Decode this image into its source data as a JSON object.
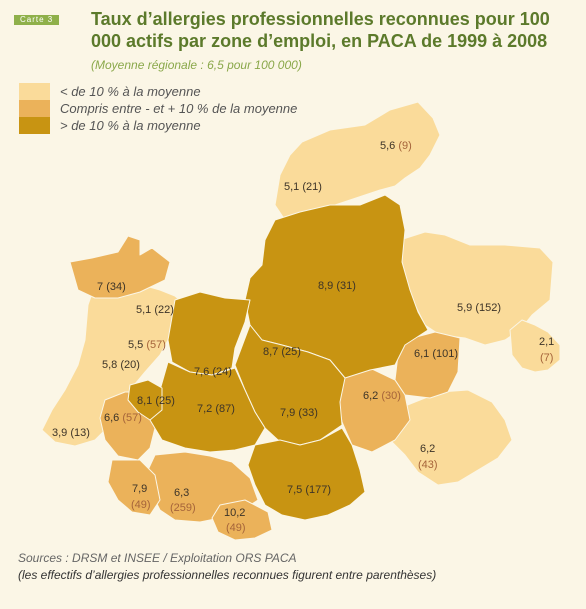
{
  "header": {
    "tag": "Carte 3",
    "title": "Taux d’allergies professionnelles reconnues pour 100 000 actifs par zone d’emploi, en PACA de 1999 à 2008",
    "subtitle": "(Moyenne régionale : 6,5 pour 100 000)"
  },
  "legend": [
    {
      "label": "< de 10 % à la moyenne",
      "color": "#fadb9a"
    },
    {
      "label": "Compris entre - et + 10 % de la moyenne",
      "color": "#ebb25a"
    },
    {
      "label": "> de 10 % à la moyenne",
      "color": "#c89412"
    }
  ],
  "zones": [
    {
      "rate": "5,6",
      "count": "(9)"
    },
    {
      "rate": "5,1",
      "count": "(21)"
    },
    {
      "rate": "8,9",
      "count": "(31)"
    },
    {
      "rate": "7",
      "count": "(34)"
    },
    {
      "rate": "5,1",
      "count": "(22)"
    },
    {
      "rate": "5,5",
      "count": "(57)"
    },
    {
      "rate": "5,8",
      "count": "(20)"
    },
    {
      "rate": "5,9",
      "count": "(152)"
    },
    {
      "rate": "2,1",
      "count": "(7)"
    },
    {
      "rate": "6,1",
      "count": "(101)"
    },
    {
      "rate": "8,7",
      "count": "(25)"
    },
    {
      "rate": "7,6",
      "count": "(24)"
    },
    {
      "rate": "8,1",
      "count": "(25)"
    },
    {
      "rate": "7,2",
      "count": "(87)"
    },
    {
      "rate": "7,9",
      "count": "(33)"
    },
    {
      "rate": "6,2",
      "count": "(30)"
    },
    {
      "rate": "6,6",
      "count": "(57)"
    },
    {
      "rate": "3,9",
      "count": "(13)"
    },
    {
      "rate": "6,2",
      "count": "(43)"
    },
    {
      "rate": "7,9",
      "count": "(49)"
    },
    {
      "rate": "6,3",
      "count": "(259)"
    },
    {
      "rate": "7,5",
      "count": "(177)"
    },
    {
      "rate": "10,2",
      "count": "(49)"
    }
  ],
  "sources": {
    "line1": "Sources : DRSM et INSEE / Exploitation ORS PACA",
    "line2": "(les effectifs d’allergies professionnelles reconnues figurent entre parenthèses)"
  }
}
